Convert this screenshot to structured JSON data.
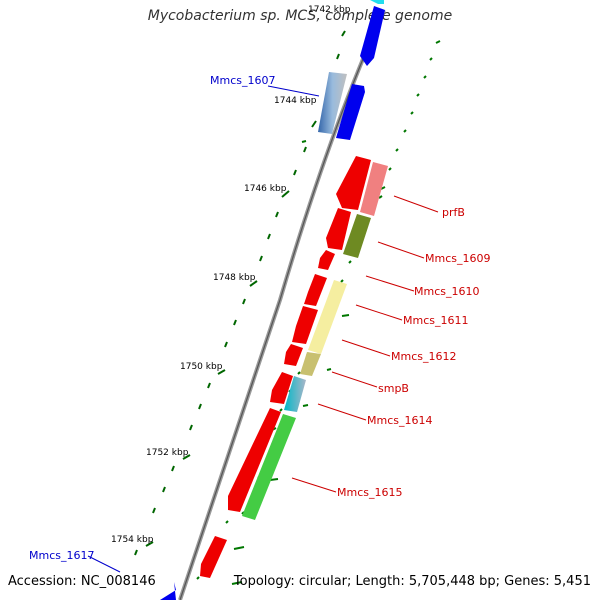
{
  "title": "Mycobacterium sp. MCS, complete genome",
  "footer": {
    "accession": "Accession: NC_008146",
    "summary": "Topology: circular; Length: 5,705,448 bp; Genes: 5,451"
  },
  "colors": {
    "forward": "#0000ff",
    "reverse": "#ff0000",
    "label_forward": "#0000cc",
    "label_reverse": "#cc0000",
    "backbone": "#888888",
    "tick": "#007700"
  },
  "ticks": [
    {
      "label": "1742 kbp"
    },
    {
      "label": "1744 kbp"
    },
    {
      "label": "1746 kbp"
    },
    {
      "label": "1748 kbp"
    },
    {
      "label": "1750 kbp"
    },
    {
      "label": "1752 kbp"
    },
    {
      "label": "1754 kbp"
    }
  ],
  "labels": [
    {
      "text": "Mmcs_1607",
      "strand": "forward"
    },
    {
      "text": "prfB",
      "strand": "reverse"
    },
    {
      "text": "Mmcs_1609",
      "strand": "reverse"
    },
    {
      "text": "Mmcs_1610",
      "strand": "reverse"
    },
    {
      "text": "Mmcs_1611",
      "strand": "reverse"
    },
    {
      "text": "Mmcs_1612",
      "strand": "reverse"
    },
    {
      "text": "smpB",
      "strand": "reverse"
    },
    {
      "text": "Mmcs_1614",
      "strand": "reverse"
    },
    {
      "text": "Mmcs_1615",
      "strand": "reverse"
    },
    {
      "text": "Mmcs_1617",
      "strand": "forward"
    }
  ]
}
